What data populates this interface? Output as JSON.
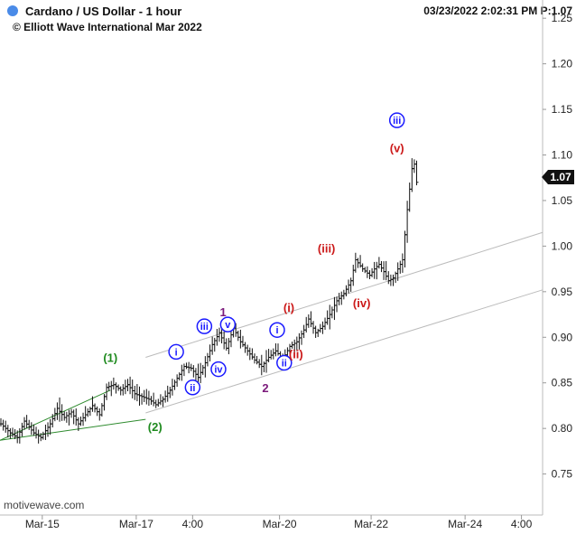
{
  "header": {
    "title": "Cardano / US Dollar - 1 hour",
    "subtitle": "© Elliott Wave International Mar 2022",
    "stamp": "03/23/2022 2:02:31 PM  P:1.07",
    "dot_color": "#4a8be8"
  },
  "watermark": "motivewave.com",
  "chart_data": {
    "type": "ohlc",
    "title": "Cardano / US Dollar - 1 hour",
    "ylim": [
      0.705,
      1.27
    ],
    "yticks": [
      0.75,
      0.8,
      0.85,
      0.9,
      0.95,
      1.0,
      1.05,
      1.1,
      1.15,
      1.2,
      1.25
    ],
    "ytick_labels": [
      "0.75",
      "0.80",
      "0.85",
      "0.90",
      "0.95",
      "1.00",
      "1.05",
      "1.10",
      "1.15",
      "1.20",
      "1.25"
    ],
    "xticks": [
      "Mar-15",
      "Mar-17",
      "4:00",
      "Mar-20",
      "Mar-22",
      "Mar-24",
      "4:00"
    ],
    "last_price": "1.07",
    "price_path": [
      [
        0,
        0.805
      ],
      [
        4,
        0.795
      ],
      [
        7,
        0.79
      ],
      [
        10,
        0.808
      ],
      [
        14,
        0.795
      ],
      [
        17,
        0.79
      ],
      [
        21,
        0.805
      ],
      [
        24,
        0.822
      ],
      [
        27,
        0.812
      ],
      [
        30,
        0.818
      ],
      [
        33,
        0.805
      ],
      [
        36,
        0.815
      ],
      [
        39,
        0.825
      ],
      [
        42,
        0.815
      ],
      [
        45,
        0.845
      ],
      [
        48,
        0.848
      ],
      [
        51,
        0.842
      ],
      [
        54,
        0.848
      ],
      [
        57,
        0.838
      ],
      [
        60,
        0.835
      ],
      [
        63,
        0.832
      ],
      [
        66,
        0.826
      ],
      [
        69,
        0.832
      ],
      [
        72,
        0.842
      ],
      [
        75,
        0.855
      ],
      [
        78,
        0.868
      ],
      [
        81,
        0.866
      ],
      [
        84,
        0.856
      ],
      [
        87,
        0.872
      ],
      [
        90,
        0.892
      ],
      [
        93,
        0.905
      ],
      [
        96,
        0.888
      ],
      [
        99,
        0.91
      ],
      [
        102,
        0.895
      ],
      [
        105,
        0.885
      ],
      [
        108,
        0.875
      ],
      [
        111,
        0.868
      ],
      [
        114,
        0.878
      ],
      [
        117,
        0.885
      ],
      [
        120,
        0.876
      ],
      [
        123,
        0.89
      ],
      [
        126,
        0.895
      ],
      [
        129,
        0.908
      ],
      [
        131,
        0.92
      ],
      [
        134,
        0.905
      ],
      [
        137,
        0.912
      ],
      [
        140,
        0.925
      ],
      [
        143,
        0.94
      ],
      [
        146,
        0.948
      ],
      [
        149,
        0.962
      ],
      [
        151,
        0.985
      ],
      [
        154,
        0.975
      ],
      [
        157,
        0.968
      ],
      [
        159,
        0.975
      ],
      [
        161,
        0.98
      ],
      [
        163,
        0.972
      ],
      [
        165,
        0.962
      ],
      [
        167,
        0.965
      ],
      [
        169,
        0.975
      ],
      [
        171,
        0.985
      ],
      [
        173,
        1.04
      ],
      [
        175,
        1.085
      ],
      [
        176,
        1.09
      ],
      [
        177,
        1.07
      ]
    ],
    "channels": [
      {
        "color": "#2e8b2e",
        "lines": [
          [
            [
              0,
              0.787
            ],
            [
              47,
              0.842
            ]
          ],
          [
            [
              0,
              0.787
            ],
            [
              62,
              0.81
            ]
          ]
        ]
      },
      {
        "color": "#bbbbbb",
        "lines": [
          [
            [
              62,
              0.878
            ],
            [
              231,
              1.015
            ]
          ],
          [
            [
              62,
              0.817
            ],
            [
              231,
              0.952
            ]
          ]
        ]
      }
    ],
    "labels": [
      {
        "text": "(1)",
        "x": 47,
        "y": 0.878,
        "color": "#1e8a1e",
        "circle": false
      },
      {
        "text": "(2)",
        "x": 66,
        "y": 0.802,
        "color": "#1e8a1e",
        "circle": false
      },
      {
        "text": "i",
        "x": 75,
        "y": 0.884,
        "color": "#1a1aff",
        "circle": true
      },
      {
        "text": "ii",
        "x": 82,
        "y": 0.845,
        "color": "#1a1aff",
        "circle": true
      },
      {
        "text": "iii",
        "x": 87,
        "y": 0.912,
        "color": "#1a1aff",
        "circle": true
      },
      {
        "text": "iv",
        "x": 93,
        "y": 0.865,
        "color": "#1a1aff",
        "circle": true
      },
      {
        "text": "v",
        "x": 97,
        "y": 0.914,
        "color": "#1a1aff",
        "circle": true
      },
      {
        "text": "1",
        "x": 95,
        "y": 0.928,
        "color": "#7b1a7b",
        "circle": false
      },
      {
        "text": "2",
        "x": 113,
        "y": 0.845,
        "color": "#7b1a7b",
        "circle": false
      },
      {
        "text": "(i)",
        "x": 123,
        "y": 0.933,
        "color": "#cc1a1a",
        "circle": false
      },
      {
        "text": "i",
        "x": 118,
        "y": 0.908,
        "color": "#1a1aff",
        "circle": true
      },
      {
        "text": "ii",
        "x": 121,
        "y": 0.872,
        "color": "#1a1aff",
        "circle": true
      },
      {
        "text": "(ii)",
        "x": 126,
        "y": 0.882,
        "color": "#cc1a1a",
        "circle": false
      },
      {
        "text": "(iii)",
        "x": 139,
        "y": 0.998,
        "color": "#cc1a1a",
        "circle": false
      },
      {
        "text": "(iv)",
        "x": 154,
        "y": 0.938,
        "color": "#cc1a1a",
        "circle": false
      },
      {
        "text": "(v)",
        "x": 169,
        "y": 1.108,
        "color": "#cc1a1a",
        "circle": false
      },
      {
        "text": "iii",
        "x": 169,
        "y": 1.138,
        "color": "#1a1aff",
        "circle": true
      }
    ]
  }
}
